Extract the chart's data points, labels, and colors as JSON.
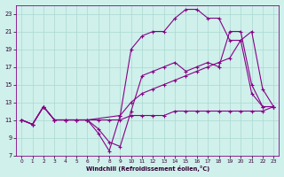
{
  "xlabel": "Windchill (Refroidissement éolien,°C)",
  "bg_color": "#cff0eb",
  "grid_color": "#aad8d0",
  "line_color": "#880088",
  "xlim": [
    -0.5,
    23.5
  ],
  "ylim": [
    7,
    24
  ],
  "xticks": [
    0,
    1,
    2,
    3,
    4,
    5,
    6,
    7,
    8,
    9,
    10,
    11,
    12,
    13,
    14,
    15,
    16,
    17,
    18,
    19,
    20,
    21,
    22,
    23
  ],
  "yticks": [
    7,
    9,
    11,
    13,
    15,
    17,
    19,
    21,
    23
  ],
  "line1_x": [
    0,
    1,
    2,
    3,
    4,
    5,
    6,
    7,
    8,
    9,
    10,
    11,
    12,
    13,
    14,
    15,
    16,
    17,
    18,
    19,
    20,
    21,
    22,
    23
  ],
  "line1_y": [
    11,
    10.5,
    12.5,
    11,
    11,
    11,
    11,
    11,
    11,
    11,
    11.5,
    11.5,
    11.5,
    11.5,
    12,
    12,
    12,
    12,
    12,
    12,
    12,
    12,
    12,
    12.5
  ],
  "line2_x": [
    0,
    1,
    2,
    3,
    4,
    5,
    6,
    9,
    10,
    11,
    12,
    13,
    14,
    15,
    16,
    17,
    18,
    19,
    20,
    21,
    22,
    23
  ],
  "line2_y": [
    11,
    10.5,
    12.5,
    11,
    11,
    11,
    11,
    11.5,
    13,
    14,
    14.5,
    15,
    15.5,
    16,
    16.5,
    17,
    17.5,
    18,
    20,
    21,
    14.5,
    12.5
  ],
  "line3_x": [
    0,
    1,
    2,
    3,
    4,
    5,
    6,
    7,
    8,
    9,
    10,
    11,
    12,
    13,
    14,
    15,
    16,
    17,
    18,
    19,
    20,
    21,
    22,
    23
  ],
  "line3_y": [
    11,
    10.5,
    12.5,
    11,
    11,
    11,
    11,
    10,
    8.5,
    8,
    12,
    16,
    16.5,
    17,
    17.5,
    16.5,
    17,
    17.5,
    17,
    21,
    21,
    15,
    12.5,
    12.5
  ],
  "line4_x": [
    0,
    1,
    2,
    3,
    4,
    5,
    6,
    7,
    8,
    9,
    10,
    11,
    12,
    13,
    14,
    15,
    16,
    17,
    18,
    19,
    20,
    21,
    22,
    23
  ],
  "line4_y": [
    11,
    10.5,
    12.5,
    11,
    11,
    11,
    11,
    9.5,
    7.5,
    11.5,
    19,
    20.5,
    21,
    21,
    22.5,
    23.5,
    23.5,
    22.5,
    22.5,
    20,
    20,
    14,
    12.5,
    12.5
  ]
}
